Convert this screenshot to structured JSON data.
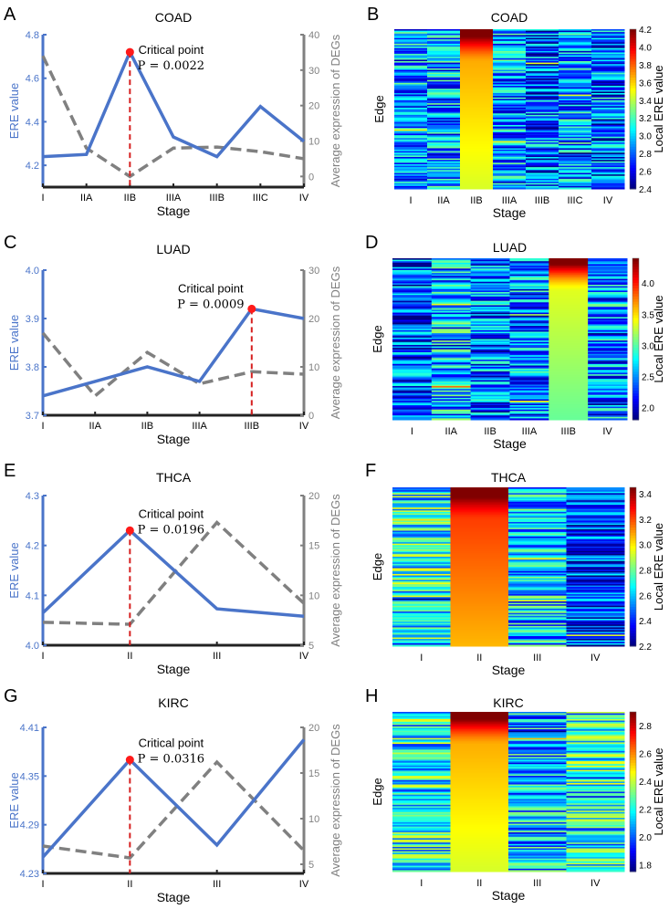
{
  "chart_data": [
    {
      "panel": "A",
      "type": "line",
      "title": "COAD",
      "xlabel": "Stage",
      "ylabel_left": "ERE value",
      "ylabel_right": "Average expression of DEGs",
      "categories": [
        "I",
        "IIA",
        "IIB",
        "IIIA",
        "IIIB",
        "IIIC",
        "IV"
      ],
      "series": [
        {
          "name": "ERE value",
          "axis": "left",
          "style": "solid",
          "color": "#4a74c9",
          "values": [
            4.24,
            4.25,
            4.72,
            4.33,
            4.24,
            4.47,
            4.31
          ]
        },
        {
          "name": "Average expression of DEGs",
          "axis": "right",
          "style": "dashed",
          "color": "#808080",
          "values": [
            34,
            8,
            0,
            8,
            8.3,
            7,
            5
          ]
        }
      ],
      "ylim_left": [
        4.1,
        4.8
      ],
      "yticks_left": [
        "4.2",
        "4.4",
        "4.6",
        "4.8"
      ],
      "ylim_right": [
        -3,
        40
      ],
      "yticks_right": [
        "0",
        "10",
        "20",
        "30",
        "40"
      ],
      "critical": {
        "index": 2,
        "label": "Critical point",
        "p_text": "P = 0.0022"
      }
    },
    {
      "panel": "C",
      "type": "line",
      "title": "LUAD",
      "xlabel": "Stage",
      "ylabel_left": "ERE value",
      "ylabel_right": "Average expression of DEGs",
      "categories": [
        "I",
        "IIA",
        "IIB",
        "IIIA",
        "IIIB",
        "IV"
      ],
      "series": [
        {
          "name": "ERE value",
          "axis": "left",
          "style": "solid",
          "color": "#4a74c9",
          "values": [
            3.74,
            3.77,
            3.8,
            3.77,
            3.92,
            3.9
          ]
        },
        {
          "name": "Average expression of DEGs",
          "axis": "right",
          "style": "dashed",
          "color": "#808080",
          "values": [
            17,
            4,
            13,
            6.5,
            9,
            8.5
          ]
        }
      ],
      "ylim_left": [
        3.7,
        4.0
      ],
      "yticks_left": [
        "3.7",
        "3.8",
        "3.9",
        "4.0"
      ],
      "ylim_right": [
        0,
        30
      ],
      "yticks_right": [
        "0",
        "10",
        "20",
        "30"
      ],
      "critical": {
        "index": 4,
        "label": "Critical point",
        "p_text": "P = 0.0009"
      }
    },
    {
      "panel": "E",
      "type": "line",
      "title": "THCA",
      "xlabel": "Stage",
      "ylabel_left": "ERE value",
      "ylabel_right": "Average expression of DEGs",
      "categories": [
        "I",
        "II",
        "III",
        "IV"
      ],
      "series": [
        {
          "name": "ERE value",
          "axis": "left",
          "style": "solid",
          "color": "#4a74c9",
          "values": [
            4.065,
            4.23,
            4.073,
            4.058
          ]
        },
        {
          "name": "Average expression of DEGs",
          "axis": "right",
          "style": "dashed",
          "color": "#808080",
          "values": [
            7.3,
            7.1,
            17.3,
            9.2
          ]
        }
      ],
      "ylim_left": [
        4.0,
        4.3
      ],
      "yticks_left": [
        "4.0",
        "4.1",
        "4.2",
        "4.3"
      ],
      "ylim_right": [
        5,
        20
      ],
      "yticks_right": [
        "5",
        "10",
        "15",
        "20"
      ],
      "critical": {
        "index": 1,
        "label": "Critical point",
        "p_text": "P = 0.0196"
      }
    },
    {
      "panel": "G",
      "type": "line",
      "title": "KIRC",
      "xlabel": "Stage",
      "ylabel_left": "ERE value",
      "ylabel_right": "Average expression of DEGs",
      "categories": [
        "I",
        "II",
        "III",
        "IV"
      ],
      "series": [
        {
          "name": "ERE value",
          "axis": "left",
          "style": "solid",
          "color": "#4a74c9",
          "values": [
            4.25,
            4.37,
            4.265,
            4.395
          ]
        },
        {
          "name": "Average expression of DEGs",
          "axis": "right",
          "style": "dashed",
          "color": "#808080",
          "values": [
            7,
            5.7,
            16.2,
            6.5
          ]
        }
      ],
      "ylim_left": [
        4.23,
        4.41
      ],
      "yticks_left": [
        "4.23",
        "4.29",
        "4.35",
        "4.41"
      ],
      "ylim_right": [
        4,
        20
      ],
      "yticks_right": [
        "5",
        "10",
        "15",
        "20"
      ],
      "critical": {
        "index": 1,
        "label": "Critical point",
        "p_text": "P = 0.0316"
      }
    },
    {
      "panel": "B",
      "type": "heatmap",
      "title": "COAD",
      "xlabel": "Stage",
      "ylabel": "Edge",
      "colorbar_label": "Local ERE value",
      "colormap": "jet",
      "categories": [
        "I",
        "IIA",
        "IIB",
        "IIIA",
        "IIIB",
        "IIIC",
        "IV"
      ],
      "column_typical": [
        2.9,
        2.9,
        3.5,
        2.9,
        2.8,
        2.9,
        2.8
      ],
      "critical_index": 2,
      "clim": [
        2.4,
        4.2
      ],
      "colorbar_ticks": [
        "2.4",
        "2.6",
        "2.8",
        "3.0",
        "3.2",
        "3.4",
        "3.6",
        "3.8",
        "4.0",
        "4.2"
      ]
    },
    {
      "panel": "D",
      "type": "heatmap",
      "title": "LUAD",
      "xlabel": "Stage",
      "ylabel": "Edge",
      "colorbar_label": "Local ERE value",
      "colormap": "jet",
      "categories": [
        "I",
        "IIA",
        "IIB",
        "IIIA",
        "IIIB",
        "IV"
      ],
      "column_typical": [
        2.3,
        2.6,
        2.4,
        2.5,
        3.1,
        2.5
      ],
      "critical_index": 4,
      "clim": [
        1.8,
        4.4
      ],
      "colorbar_ticks": [
        "2.0",
        "2.5",
        "3.0",
        "3.5",
        "4.0"
      ]
    },
    {
      "panel": "F",
      "type": "heatmap",
      "title": "THCA",
      "xlabel": "Stage",
      "ylabel": "Edge",
      "colorbar_label": "Local ERE value",
      "colormap": "jet",
      "categories": [
        "I",
        "II",
        "III",
        "IV"
      ],
      "column_typical": [
        2.7,
        3.1,
        2.6,
        2.4
      ],
      "critical_index": 1,
      "clim": [
        2.2,
        3.45
      ],
      "colorbar_ticks": [
        "2.2",
        "2.4",
        "2.6",
        "2.8",
        "3.0",
        "3.2",
        "3.4"
      ]
    },
    {
      "panel": "H",
      "type": "heatmap",
      "title": "KIRC",
      "xlabel": "Stage",
      "ylabel": "Edge",
      "colorbar_label": "Local ERE value",
      "colormap": "jet",
      "categories": [
        "I",
        "II",
        "III",
        "IV"
      ],
      "column_typical": [
        2.2,
        2.45,
        2.1,
        2.2
      ],
      "critical_index": 1,
      "clim": [
        1.75,
        2.9
      ],
      "colorbar_ticks": [
        "1.8",
        "2.0",
        "2.2",
        "2.4",
        "2.6",
        "2.8"
      ]
    }
  ]
}
